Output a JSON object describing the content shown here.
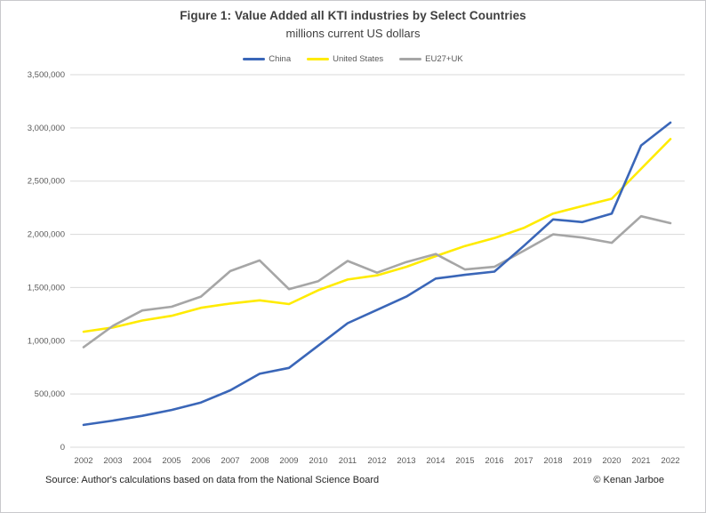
{
  "chart": {
    "title": "Figure 1: Value Added all KTI industries by Select Countries",
    "subtitle": "millions current US dollars"
  },
  "footer": {
    "source": "Source: Author's calculations based on data from the National Science Board",
    "credit": "© Kenan Jarboe"
  },
  "chart_data": {
    "type": "line",
    "title": "Figure 1: Value Added all KTI industries by Select Countries",
    "subtitle": "millions current US dollars",
    "xlabel": "",
    "ylabel": "",
    "ylim": [
      0,
      3500000
    ],
    "grid": "horizontal",
    "legend_position": "top",
    "categories": [
      "2002",
      "2003",
      "2004",
      "2005",
      "2006",
      "2007",
      "2008",
      "2009",
      "2010",
      "2011",
      "2012",
      "2013",
      "2014",
      "2015",
      "2016",
      "2017",
      "2018",
      "2019",
      "2020",
      "2021",
      "2022"
    ],
    "y_ticks": [
      "3,500,000",
      "3,000,000",
      "2,500,000",
      "2,000,000",
      "1,500,000",
      "1,000,000",
      "500,000",
      "0"
    ],
    "series": [
      {
        "name": "China",
        "color": "#3A66B8",
        "values": [
          210000,
          250000,
          295000,
          350000,
          420000,
          535000,
          690000,
          745000,
          955000,
          1165000,
          1290000,
          1415000,
          1585000,
          1620000,
          1650000,
          1890000,
          2140000,
          2115000,
          2195000,
          2835000,
          3050000
        ]
      },
      {
        "name": "United States",
        "color": "#FFEB00",
        "values": [
          1085000,
          1125000,
          1190000,
          1235000,
          1310000,
          1350000,
          1380000,
          1345000,
          1475000,
          1575000,
          1615000,
          1695000,
          1795000,
          1890000,
          1965000,
          2060000,
          2195000,
          2265000,
          2335000,
          2615000,
          2895000
        ]
      },
      {
        "name": "EU27+UK",
        "color": "#A6A6A6",
        "values": [
          940000,
          1140000,
          1285000,
          1320000,
          1415000,
          1655000,
          1755000,
          1485000,
          1560000,
          1750000,
          1640000,
          1740000,
          1815000,
          1670000,
          1695000,
          1845000,
          2000000,
          1970000,
          1920000,
          2170000,
          2105000
        ]
      }
    ]
  }
}
